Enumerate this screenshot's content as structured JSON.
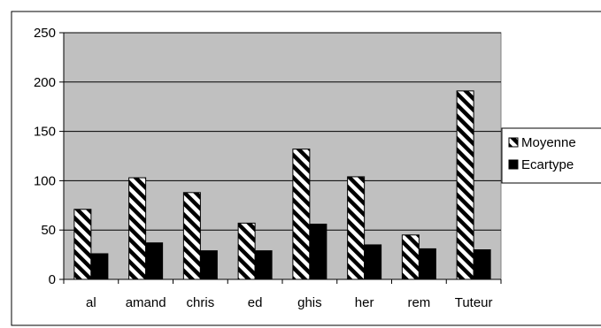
{
  "chart_data": {
    "type": "bar",
    "categories": [
      "al",
      "amand",
      "chris",
      "ed",
      "ghis",
      "her",
      "rem",
      "Tuteur"
    ],
    "series": [
      {
        "name": "Moyenne",
        "values": [
          71,
          103,
          88,
          57,
          132,
          104,
          45,
          191
        ],
        "pattern": "diagonal-hatch"
      },
      {
        "name": "Ecartype",
        "values": [
          26,
          37,
          29,
          29,
          56,
          35,
          31,
          30
        ],
        "color": "#000000"
      }
    ],
    "ylim": [
      0,
      250
    ],
    "yticks": [
      0,
      50,
      100,
      150,
      200,
      250
    ],
    "grid": true,
    "legend_position": "right",
    "plot_background": "#c0c0c0"
  }
}
